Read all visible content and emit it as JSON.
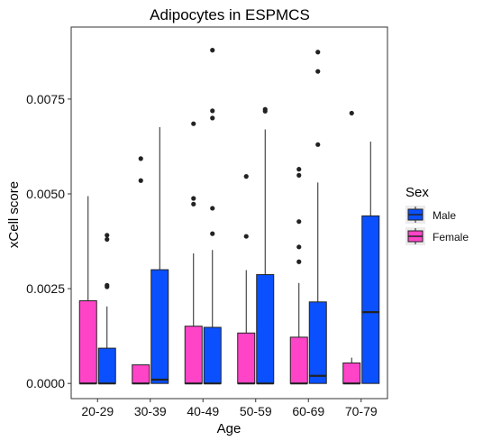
{
  "chart_data": {
    "type": "boxplot",
    "title": "Adipocytes in ESPMCS",
    "xlabel": "Age",
    "ylabel": "xCell score",
    "categories": [
      "20-29",
      "30-39",
      "40-49",
      "50-59",
      "60-69",
      "70-79"
    ],
    "yticks": [
      0.0,
      0.0025,
      0.005,
      0.0075
    ],
    "ytick_labels": [
      "0.0000",
      "0.0025",
      "0.0050",
      "0.0075"
    ],
    "ylim": [
      -0.0004,
      0.0094
    ],
    "grid": false,
    "legend": {
      "title": "Sex",
      "position": "right",
      "entries": [
        {
          "name": "Male",
          "color": "#0a50ff"
        },
        {
          "name": "Female",
          "color": "#ff44c8"
        }
      ]
    },
    "series": [
      {
        "name": "Female",
        "color": "#ff44c8",
        "boxes": [
          {
            "q1": 0.0,
            "median": 0.0,
            "q3": 0.00218,
            "whisker_low": 0.0,
            "whisker_high": 0.00494,
            "outliers": []
          },
          {
            "q1": 0.0,
            "median": 0.0,
            "q3": 0.00049,
            "whisker_low": 0.0,
            "whisker_high": 0.00049,
            "outliers": [
              0.00535,
              0.00593
            ]
          },
          {
            "q1": 0.0,
            "median": 0.0,
            "q3": 0.00151,
            "whisker_low": 0.0,
            "whisker_high": 0.00343,
            "outliers": [
              0.00473,
              0.00488,
              0.00685
            ]
          },
          {
            "q1": 0.0,
            "median": 0.0,
            "q3": 0.00133,
            "whisker_low": 0.0,
            "whisker_high": 0.00299,
            "outliers": [
              0.00388,
              0.00546
            ]
          },
          {
            "q1": 0.0,
            "median": 0.0,
            "q3": 0.00122,
            "whisker_low": 0.0,
            "whisker_high": 0.00265,
            "outliers": [
              0.00321,
              0.0036,
              0.00427,
              0.00549,
              0.00565
            ]
          },
          {
            "q1": 0.0,
            "median": 0.0,
            "q3": 0.00054,
            "whisker_low": 0.0,
            "whisker_high": 0.00068,
            "outliers": [
              0.00713
            ]
          }
        ]
      },
      {
        "name": "Male",
        "color": "#0a50ff",
        "boxes": [
          {
            "q1": 0.0,
            "median": 0.0,
            "q3": 0.00093,
            "whisker_low": 0.0,
            "whisker_high": 0.00203,
            "outliers": [
              0.00255,
              0.00259,
              0.0038,
              0.00391
            ]
          },
          {
            "q1": 0.0,
            "median": 0.0001,
            "q3": 0.003,
            "whisker_low": 0.0,
            "whisker_high": 0.00676,
            "outliers": []
          },
          {
            "q1": 0.0,
            "median": 0.0,
            "q3": 0.00148,
            "whisker_low": 0.0,
            "whisker_high": 0.00352,
            "outliers": [
              0.00395,
              0.00462,
              0.007,
              0.00719,
              0.00879
            ]
          },
          {
            "q1": 0.0,
            "median": 0.0,
            "q3": 0.00287,
            "whisker_low": 0.0,
            "whisker_high": 0.0067,
            "outliers": [
              0.00718,
              0.00723
            ]
          },
          {
            "q1": 0.0,
            "median": 0.0002,
            "q3": 0.00215,
            "whisker_low": 0.0,
            "whisker_high": 0.0053,
            "outliers": [
              0.0063,
              0.00823,
              0.00874
            ]
          },
          {
            "q1": 0.0,
            "median": 0.00188,
            "q3": 0.00442,
            "whisker_low": 0.0,
            "whisker_high": 0.00638,
            "outliers": []
          }
        ]
      }
    ]
  }
}
